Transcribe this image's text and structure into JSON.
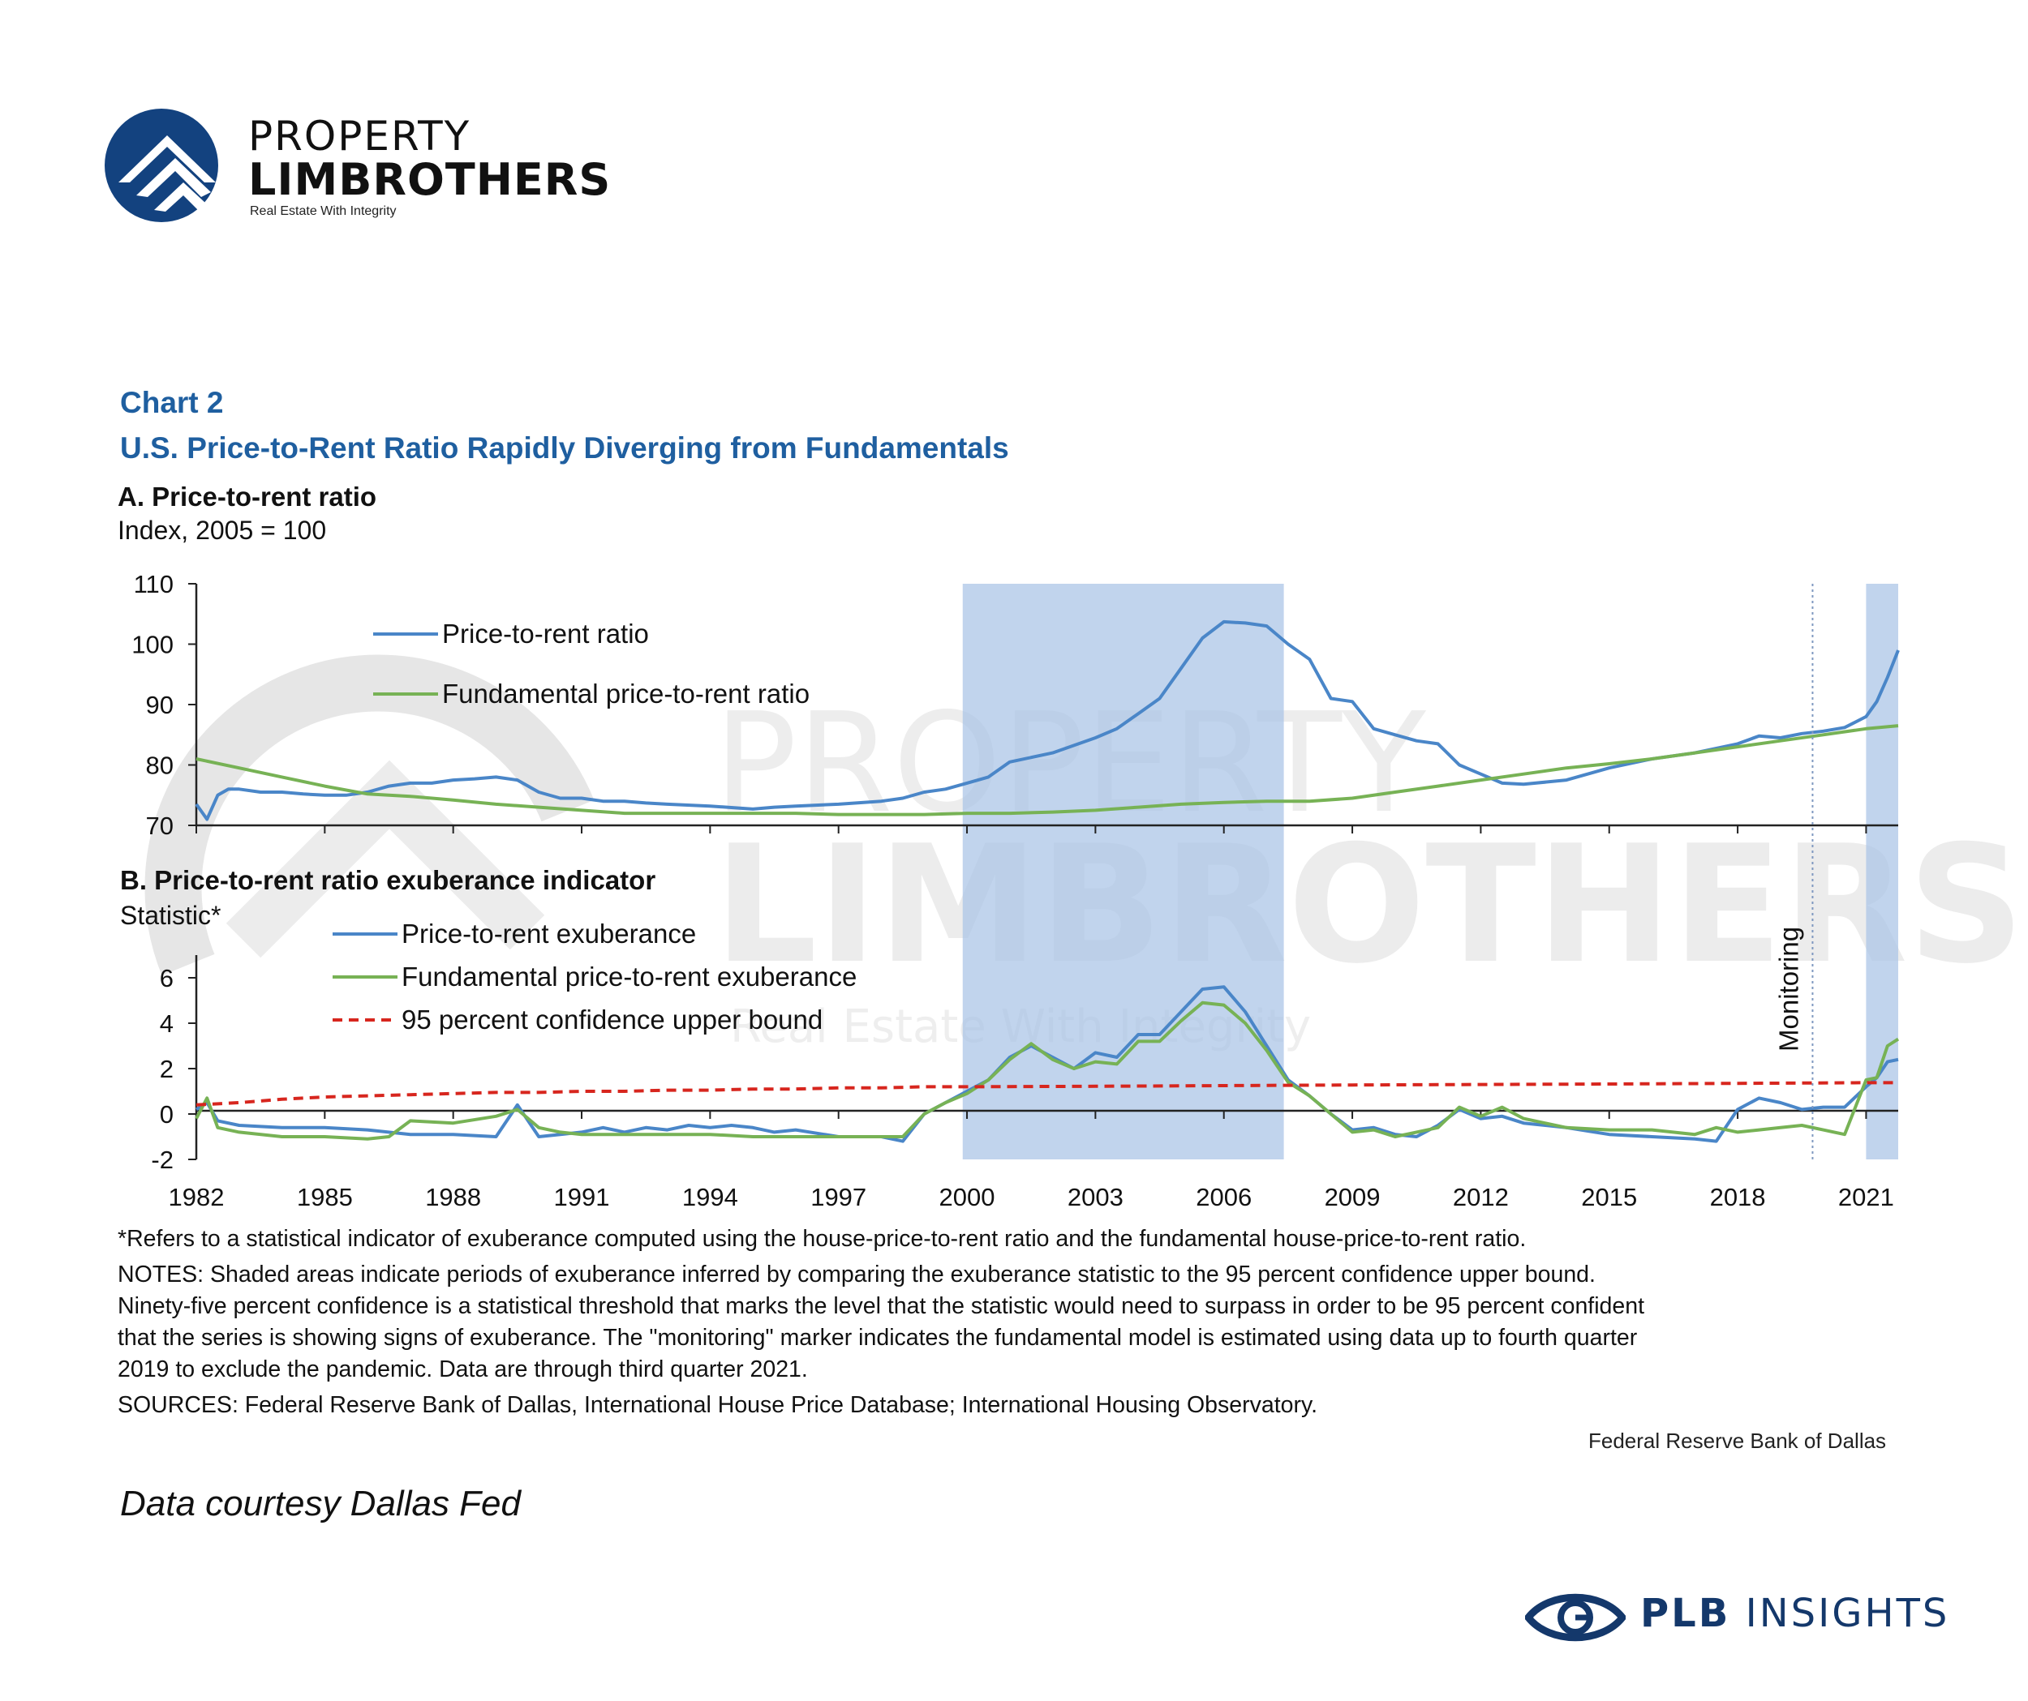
{
  "brand": {
    "name_top": "PROPERTY",
    "name_bottom": "LIMBROTHERS",
    "tagline": "Real Estate With Integrity",
    "color": "#13427f"
  },
  "header": {
    "chart_number": "Chart 2",
    "title": "U.S. Price-to-Rent Ratio Rapidly Diverging from Fundamentals"
  },
  "chart_data": [
    {
      "type": "line",
      "title": "A. Price-to-rent ratio",
      "ylabel": "Index, 2005 = 100",
      "xlim": [
        1982,
        2021.75
      ],
      "ylim": [
        70,
        110
      ],
      "yticks": [
        70,
        80,
        90,
        100,
        110
      ],
      "xticks": [
        1982,
        1985,
        1988,
        1991,
        1994,
        1997,
        2000,
        2003,
        2006,
        2009,
        2012,
        2015,
        2018,
        2021
      ],
      "legend_position": "top-left",
      "shaded_periods": [
        [
          1999.9,
          2007.4
        ],
        [
          2021.0,
          2021.75
        ]
      ],
      "series": [
        {
          "name": "Price-to-rent ratio",
          "color": "#4a86c8",
          "x": [
            1982,
            1982.25,
            1982.5,
            1982.75,
            1983,
            1983.5,
            1984,
            1984.5,
            1985,
            1985.5,
            1986,
            1986.5,
            1987,
            1987.5,
            1988,
            1988.5,
            1989,
            1989.5,
            1990,
            1990.5,
            1991,
            1991.5,
            1992,
            1992.5,
            1993,
            1994,
            1995,
            1995.5,
            1996,
            1997,
            1998,
            1998.5,
            1999,
            1999.5,
            2000,
            2000.5,
            2001,
            2002,
            2003,
            2003.5,
            2004,
            2004.5,
            2005,
            2005.5,
            2006,
            2006.5,
            2007,
            2007.5,
            2008,
            2008.5,
            2009,
            2009.5,
            2010,
            2010.5,
            2011,
            2011.5,
            2012,
            2012.5,
            2013,
            2014,
            2015,
            2016,
            2017,
            2018,
            2018.5,
            2019,
            2019.5,
            2020,
            2020.5,
            2021,
            2021.25,
            2021.5,
            2021.75
          ],
          "y": [
            73.5,
            71,
            75,
            76,
            76,
            75.5,
            75.5,
            75.2,
            75,
            75,
            75.5,
            76.5,
            77,
            77,
            77.5,
            77.7,
            78,
            77.5,
            75.5,
            74.5,
            74.5,
            74,
            74,
            73.7,
            73.5,
            73.2,
            72.7,
            73,
            73.2,
            73.5,
            74,
            74.5,
            75.5,
            76,
            77,
            78,
            80.5,
            82,
            84.5,
            86,
            88.5,
            91,
            96,
            101,
            103.7,
            103.5,
            103,
            100,
            97.5,
            91,
            90.5,
            86,
            85,
            84,
            83.5,
            80,
            78.5,
            77,
            76.8,
            77.5,
            79.5,
            81,
            82,
            83.5,
            84.8,
            84.5,
            85.2,
            85.6,
            86.2,
            88,
            90.5,
            94.5,
            99
          ]
        },
        {
          "name": "Fundamental price-to-rent ratio",
          "color": "#77b255",
          "x": [
            1982,
            1983,
            1984,
            1985,
            1986,
            1987,
            1988,
            1989,
            1990,
            1991,
            1992,
            1993,
            1994,
            1995,
            1996,
            1997,
            1998,
            1999,
            2000,
            2001,
            2002,
            2003,
            2004,
            2005,
            2006,
            2007,
            2008,
            2009,
            2010,
            2011,
            2012,
            2013,
            2014,
            2015,
            2016,
            2017,
            2018,
            2019,
            2020,
            2021,
            2021.75
          ],
          "y": [
            81,
            79.5,
            78,
            76.5,
            75.2,
            74.8,
            74.2,
            73.5,
            73,
            72.5,
            72,
            72,
            72,
            72,
            72,
            71.8,
            71.8,
            71.8,
            72,
            72,
            72.2,
            72.5,
            73,
            73.5,
            73.8,
            74,
            74,
            74.5,
            75.5,
            76.5,
            77.5,
            78.5,
            79.5,
            80.2,
            81,
            82,
            83,
            84,
            85,
            86,
            86.5
          ]
        }
      ]
    },
    {
      "type": "line",
      "title": "B. Price-to-rent ratio exuberance indicator",
      "ylabel": "Statistic*",
      "xlim": [
        1982,
        2021.75
      ],
      "ylim": [
        -2,
        7
      ],
      "yticks": [
        -2,
        0,
        2,
        4,
        6
      ],
      "xticks": [
        1982,
        1985,
        1988,
        1991,
        1994,
        1997,
        2000,
        2003,
        2006,
        2009,
        2012,
        2015,
        2018,
        2021
      ],
      "legend_position": "top-left",
      "shaded_periods": [
        [
          1999.9,
          2007.4
        ],
        [
          2021.0,
          2021.75
        ]
      ],
      "annotation": {
        "label": "Monitoring",
        "x": 2019.75
      },
      "series": [
        {
          "name": "Price-to-rent exuberance",
          "color": "#4a86c8",
          "x": [
            1982,
            1982.25,
            1982.5,
            1983,
            1984,
            1985,
            1986,
            1987,
            1988,
            1989,
            1989.5,
            1990,
            1990.5,
            1991,
            1991.5,
            1992,
            1992.5,
            1993,
            1993.5,
            1994,
            1994.5,
            1995,
            1995.5,
            1996,
            1997,
            1998,
            1998.5,
            1999,
            1999.5,
            2000,
            2000.5,
            2001,
            2001.5,
            2002,
            2002.5,
            2003,
            2003.5,
            2004,
            2004.5,
            2005,
            2005.5,
            2006,
            2006.5,
            2007,
            2007.5,
            2008,
            2008.5,
            2009,
            2009.5,
            2010,
            2010.5,
            2011,
            2011.5,
            2012,
            2012.5,
            2013,
            2014,
            2015,
            2016,
            2017,
            2017.5,
            2018,
            2018.5,
            2019,
            2019.5,
            2020,
            2020.5,
            2021,
            2021.25,
            2021.5,
            2021.75
          ],
          "y": [
            0.2,
            0.5,
            -0.3,
            -0.5,
            -0.6,
            -0.6,
            -0.7,
            -0.9,
            -0.9,
            -1.0,
            0.4,
            -1.0,
            -0.9,
            -0.8,
            -0.6,
            -0.8,
            -0.6,
            -0.7,
            -0.5,
            -0.6,
            -0.5,
            -0.6,
            -0.8,
            -0.7,
            -1.0,
            -1.0,
            -1.2,
            0,
            0.5,
            1.0,
            1.5,
            2.5,
            3.0,
            2.5,
            2.0,
            2.7,
            2.5,
            3.5,
            3.5,
            4.5,
            5.5,
            5.6,
            4.5,
            3.0,
            1.5,
            0.8,
            0,
            -0.7,
            -0.6,
            -0.9,
            -1.0,
            -0.5,
            0.2,
            -0.2,
            -0.1,
            -0.4,
            -0.6,
            -0.9,
            -1.0,
            -1.1,
            -1.2,
            0.2,
            0.7,
            0.5,
            0.2,
            0.3,
            0.3,
            1.2,
            1.6,
            2.3,
            2.4
          ]
        },
        {
          "name": "Fundamental price-to-rent exuberance",
          "color": "#77b255",
          "x": [
            1982,
            1982.25,
            1982.5,
            1983,
            1984,
            1985,
            1986,
            1986.5,
            1987,
            1988,
            1989,
            1989.5,
            1990,
            1990.5,
            1991,
            1992,
            1993,
            1994,
            1995,
            1996,
            1997,
            1998,
            1998.5,
            1999,
            1999.5,
            2000,
            2000.5,
            2001,
            2001.5,
            2002,
            2002.5,
            2003,
            2003.5,
            2004,
            2004.5,
            2005,
            2005.5,
            2006,
            2006.5,
            2007,
            2007.5,
            2008,
            2008.5,
            2009,
            2009.5,
            2010,
            2010.5,
            2011,
            2011.5,
            2012,
            2012.5,
            2013,
            2014,
            2015,
            2016,
            2017,
            2017.5,
            2018,
            2018.5,
            2019,
            2019.5,
            2020,
            2020.5,
            2021,
            2021.25,
            2021.5,
            2021.75
          ],
          "y": [
            -0.2,
            0.7,
            -0.6,
            -0.8,
            -1.0,
            -1.0,
            -1.1,
            -1.0,
            -0.3,
            -0.4,
            -0.1,
            0.2,
            -0.6,
            -0.8,
            -0.9,
            -0.9,
            -0.9,
            -0.9,
            -1.0,
            -1.0,
            -1.0,
            -1.0,
            -1.0,
            0,
            0.5,
            0.9,
            1.5,
            2.4,
            3.1,
            2.4,
            2.0,
            2.3,
            2.2,
            3.2,
            3.2,
            4.1,
            4.9,
            4.8,
            4.0,
            2.8,
            1.4,
            0.8,
            0,
            -0.8,
            -0.7,
            -1.0,
            -0.8,
            -0.6,
            0.3,
            -0.1,
            0.3,
            -0.2,
            -0.6,
            -0.7,
            -0.7,
            -0.9,
            -0.6,
            -0.8,
            -0.7,
            -0.6,
            -0.5,
            -0.7,
            -0.9,
            1.5,
            1.6,
            3.0,
            3.3
          ]
        },
        {
          "name": "95 percent confidence upper bound",
          "color": "#d7261e",
          "dashed": true,
          "x": [
            1982,
            1983,
            1984,
            1985,
            1986,
            1987,
            1988,
            1989,
            1990,
            1991,
            1992,
            1993,
            1994,
            1995,
            1996,
            1997,
            1998,
            1999,
            2000,
            2003,
            2006,
            2009,
            2012,
            2015,
            2018,
            2021,
            2021.75
          ],
          "y": [
            0.4,
            0.5,
            0.65,
            0.75,
            0.8,
            0.85,
            0.9,
            0.95,
            0.95,
            1.0,
            1.0,
            1.05,
            1.05,
            1.1,
            1.1,
            1.15,
            1.15,
            1.2,
            1.2,
            1.22,
            1.25,
            1.28,
            1.3,
            1.32,
            1.35,
            1.38,
            1.38
          ]
        }
      ]
    }
  ],
  "footnotes": {
    "asterisk": "*Refers to a statistical indicator of exuberance computed using the house-price-to-rent ratio and the fundamental house-price-to-rent ratio.",
    "notes_1": "NOTES: Shaded areas indicate periods of exuberance inferred by comparing the exuberance statistic to the 95 percent confidence upper bound.",
    "notes_2": "Ninety-five percent confidence is a statistical threshold that marks the level that the statistic would need to surpass in order to be 95 percent confident",
    "notes_3": "that the series is showing signs of exuberance. The \"monitoring\" marker indicates the fundamental model is estimated using data up to fourth quarter",
    "notes_4": "2019 to exclude the pandemic. Data are through third quarter 2021.",
    "sources": "SOURCES: Federal Reserve Bank of Dallas, International House Price Database; International Housing Observatory.",
    "credit": "Federal Reserve Bank of Dallas"
  },
  "courtesy": "Data courtesy Dallas Fed",
  "insights": {
    "bold": "PLB",
    "rest": " INSIGHTS",
    "icon": "eye-icon"
  },
  "watermark": {
    "line1": "PROPERTY",
    "line2": "LIMBROTHERS",
    "line3": "Real Estate With Integrity"
  }
}
